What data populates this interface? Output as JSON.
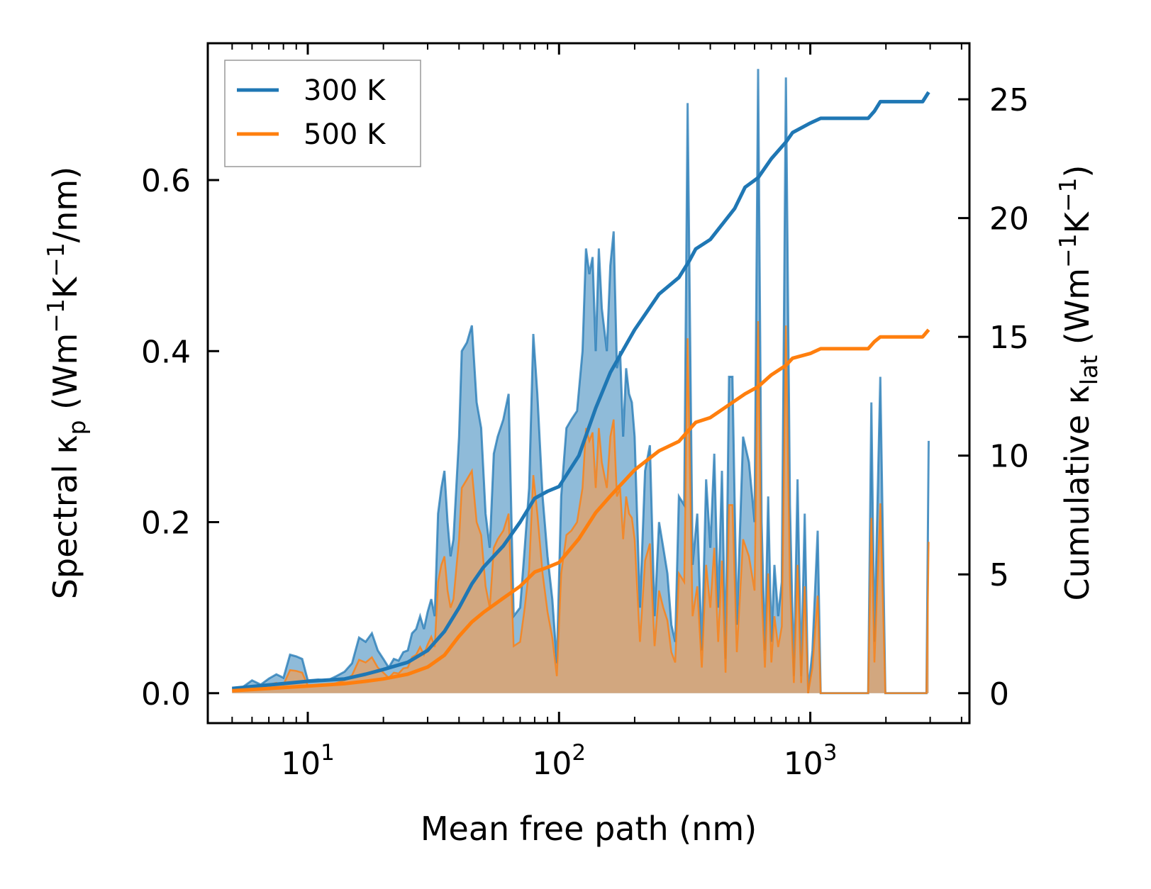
{
  "chart_data": {
    "type": "area",
    "xscale": "log",
    "xlim": [
      4.0,
      4300
    ],
    "ylim_left": [
      -0.035,
      0.76
    ],
    "ylim_right": [
      -1.26,
      27.36
    ],
    "xlabel": "Mean free path (nm)",
    "ylabel_left": {
      "prefix": "Spectral κ",
      "sub": "p",
      "units": " (Wm",
      "sup1": "−1",
      "mid": "K",
      "sup2": "−1",
      "suffix": "/nm)"
    },
    "ylabel_right": {
      "prefix": "Cumulative κ",
      "sub": "lat",
      "units": " (Wm",
      "sup1": "−1",
      "mid": "K",
      "sup2": "−1",
      "suffix": ")"
    },
    "x_ticks": [
      {
        "base": "10",
        "exp": "1",
        "value": 10
      },
      {
        "base": "10",
        "exp": "2",
        "value": 100
      },
      {
        "base": "10",
        "exp": "3",
        "value": 1000
      }
    ],
    "y_ticks_left": [
      {
        "label": "0.0",
        "value": 0.0
      },
      {
        "label": "0.2",
        "value": 0.2
      },
      {
        "label": "0.4",
        "value": 0.4
      },
      {
        "label": "0.6",
        "value": 0.6
      }
    ],
    "y_ticks_right": [
      {
        "label": "0",
        "value": 0
      },
      {
        "label": "5",
        "value": 5
      },
      {
        "label": "10",
        "value": 10
      },
      {
        "label": "15",
        "value": 15
      },
      {
        "label": "20",
        "value": 20
      },
      {
        "label": "25",
        "value": 25
      }
    ],
    "legend": {
      "position": "upper-left",
      "entries": [
        "300 K",
        "500 K"
      ]
    },
    "colors": {
      "s300": "#1f77b4",
      "s500": "#ff7f0e",
      "fill300": "#1f77b4",
      "fill500": "#e8a060"
    },
    "spectral_300K": [
      [
        5.0,
        0.005
      ],
      [
        5.5,
        0.007
      ],
      [
        6.0,
        0.015
      ],
      [
        6.5,
        0.01
      ],
      [
        7.0,
        0.017
      ],
      [
        7.5,
        0.022
      ],
      [
        8.0,
        0.018
      ],
      [
        8.5,
        0.045
      ],
      [
        9.0,
        0.043
      ],
      [
        9.5,
        0.04
      ],
      [
        10.0,
        0.015
      ],
      [
        11.0,
        0.016
      ],
      [
        12.0,
        0.015
      ],
      [
        13.0,
        0.02
      ],
      [
        14.0,
        0.025
      ],
      [
        15.0,
        0.035
      ],
      [
        16.0,
        0.065
      ],
      [
        17.0,
        0.06
      ],
      [
        18.0,
        0.07
      ],
      [
        19.0,
        0.05
      ],
      [
        20.0,
        0.04
      ],
      [
        21.0,
        0.03
      ],
      [
        22.0,
        0.04
      ],
      [
        23.0,
        0.038
      ],
      [
        24.0,
        0.048
      ],
      [
        25.0,
        0.05
      ],
      [
        26.0,
        0.07
      ],
      [
        27.0,
        0.075
      ],
      [
        28.0,
        0.09
      ],
      [
        29.0,
        0.075
      ],
      [
        30.0,
        0.095
      ],
      [
        31.0,
        0.11
      ],
      [
        32.0,
        0.09
      ],
      [
        33.0,
        0.21
      ],
      [
        34.0,
        0.24
      ],
      [
        35.0,
        0.26
      ],
      [
        36.0,
        0.2
      ],
      [
        37.0,
        0.16
      ],
      [
        38.0,
        0.18
      ],
      [
        40.0,
        0.3
      ],
      [
        41.0,
        0.4
      ],
      [
        43.0,
        0.41
      ],
      [
        45.0,
        0.43
      ],
      [
        47.0,
        0.34
      ],
      [
        49.0,
        0.31
      ],
      [
        51.0,
        0.21
      ],
      [
        53.0,
        0.17
      ],
      [
        55.0,
        0.28
      ],
      [
        57.0,
        0.3
      ],
      [
        60.0,
        0.32
      ],
      [
        63.0,
        0.35
      ],
      [
        66.0,
        0.09
      ],
      [
        70.0,
        0.1
      ],
      [
        73.0,
        0.17
      ],
      [
        76.0,
        0.24
      ],
      [
        79.0,
        0.42
      ],
      [
        82.0,
        0.35
      ],
      [
        86.0,
        0.23
      ],
      [
        90.0,
        0.16
      ],
      [
        94.0,
        0.11
      ],
      [
        98.0,
        0.035
      ],
      [
        102.0,
        0.23
      ],
      [
        107.0,
        0.31
      ],
      [
        112.0,
        0.32
      ],
      [
        118.0,
        0.33
      ],
      [
        124.0,
        0.4
      ],
      [
        128.0,
        0.52
      ],
      [
        132.0,
        0.49
      ],
      [
        136.0,
        0.51
      ],
      [
        140.0,
        0.4
      ],
      [
        144.0,
        0.52
      ],
      [
        148.0,
        0.45
      ],
      [
        155.0,
        0.4
      ],
      [
        160.0,
        0.5
      ],
      [
        165.0,
        0.54
      ],
      [
        170.0,
        0.38
      ],
      [
        175.0,
        0.4
      ],
      [
        180.0,
        0.3
      ],
      [
        185.0,
        0.38
      ],
      [
        190.0,
        0.35
      ],
      [
        195.0,
        0.34
      ],
      [
        200.0,
        0.3
      ],
      [
        210.0,
        0.1
      ],
      [
        220.0,
        0.26
      ],
      [
        230.0,
        0.29
      ],
      [
        240.0,
        0.09
      ],
      [
        250.0,
        0.2
      ],
      [
        260.0,
        0.17
      ],
      [
        270.0,
        0.14
      ],
      [
        280.0,
        0.08
      ],
      [
        290.0,
        0.06
      ],
      [
        300.0,
        0.23
      ],
      [
        315.0,
        0.22
      ],
      [
        325.0,
        0.69
      ],
      [
        340.0,
        0.15
      ],
      [
        355.0,
        0.21
      ],
      [
        370.0,
        0.05
      ],
      [
        385.0,
        0.25
      ],
      [
        400.0,
        0.17
      ],
      [
        415.0,
        0.28
      ],
      [
        430.0,
        0.1
      ],
      [
        445.0,
        0.26
      ],
      [
        460.0,
        0.04
      ],
      [
        475.0,
        0.37
      ],
      [
        490.0,
        0.37
      ],
      [
        510.0,
        0.08
      ],
      [
        540.0,
        0.3
      ],
      [
        570.0,
        0.27
      ],
      [
        600.0,
        0.2
      ],
      [
        620.0,
        0.73
      ],
      [
        640.0,
        0.2
      ],
      [
        660.0,
        0.05
      ],
      [
        680.0,
        0.23
      ],
      [
        700.0,
        0.06
      ],
      [
        720.0,
        0.15
      ],
      [
        745.0,
        0.09
      ],
      [
        770.0,
        0.13
      ],
      [
        800.0,
        0.72
      ],
      [
        830.0,
        0.22
      ],
      [
        860.0,
        0.02
      ],
      [
        890.0,
        0.25
      ],
      [
        920.0,
        0.02
      ],
      [
        950.0,
        0.21
      ],
      [
        980.0,
        0.0
      ],
      [
        1020.0,
        0.05
      ],
      [
        1070.0,
        0.19
      ],
      [
        1100.0,
        0.0
      ],
      [
        1700.0,
        0.0
      ],
      [
        1750.0,
        0.34
      ],
      [
        1800.0,
        0.06
      ],
      [
        1900.0,
        0.37
      ],
      [
        1990.0,
        0.0
      ],
      [
        2900.0,
        0.0
      ],
      [
        2960.0,
        0.295
      ]
    ],
    "spectral_500K": [
      [
        5.0,
        0.003
      ],
      [
        5.5,
        0.004
      ],
      [
        6.0,
        0.008
      ],
      [
        6.5,
        0.006
      ],
      [
        7.0,
        0.01
      ],
      [
        7.5,
        0.012
      ],
      [
        8.0,
        0.01
      ],
      [
        8.5,
        0.027
      ],
      [
        9.0,
        0.026
      ],
      [
        9.5,
        0.024
      ],
      [
        10.0,
        0.009
      ],
      [
        11.0,
        0.01
      ],
      [
        12.0,
        0.009
      ],
      [
        13.0,
        0.012
      ],
      [
        14.0,
        0.015
      ],
      [
        15.0,
        0.021
      ],
      [
        16.0,
        0.039
      ],
      [
        17.0,
        0.036
      ],
      [
        18.0,
        0.042
      ],
      [
        19.0,
        0.03
      ],
      [
        20.0,
        0.024
      ],
      [
        21.0,
        0.018
      ],
      [
        22.0,
        0.024
      ],
      [
        23.0,
        0.023
      ],
      [
        24.0,
        0.029
      ],
      [
        25.0,
        0.03
      ],
      [
        26.0,
        0.042
      ],
      [
        27.0,
        0.045
      ],
      [
        28.0,
        0.054
      ],
      [
        29.0,
        0.045
      ],
      [
        30.0,
        0.057
      ],
      [
        31.0,
        0.066
      ],
      [
        32.0,
        0.054
      ],
      [
        33.0,
        0.13
      ],
      [
        34.0,
        0.15
      ],
      [
        35.0,
        0.16
      ],
      [
        36.0,
        0.12
      ],
      [
        37.0,
        0.1
      ],
      [
        38.0,
        0.11
      ],
      [
        40.0,
        0.18
      ],
      [
        41.0,
        0.24
      ],
      [
        43.0,
        0.25
      ],
      [
        45.0,
        0.26
      ],
      [
        47.0,
        0.2
      ],
      [
        49.0,
        0.185
      ],
      [
        51.0,
        0.125
      ],
      [
        53.0,
        0.1
      ],
      [
        55.0,
        0.17
      ],
      [
        57.0,
        0.18
      ],
      [
        60.0,
        0.19
      ],
      [
        63.0,
        0.21
      ],
      [
        66.0,
        0.055
      ],
      [
        70.0,
        0.06
      ],
      [
        73.0,
        0.1
      ],
      [
        76.0,
        0.145
      ],
      [
        79.0,
        0.255
      ],
      [
        82.0,
        0.21
      ],
      [
        86.0,
        0.14
      ],
      [
        90.0,
        0.095
      ],
      [
        94.0,
        0.065
      ],
      [
        98.0,
        0.02
      ],
      [
        102.0,
        0.14
      ],
      [
        107.0,
        0.185
      ],
      [
        112.0,
        0.19
      ],
      [
        118.0,
        0.2
      ],
      [
        124.0,
        0.24
      ],
      [
        128.0,
        0.31
      ],
      [
        132.0,
        0.295
      ],
      [
        136.0,
        0.305
      ],
      [
        140.0,
        0.24
      ],
      [
        144.0,
        0.31
      ],
      [
        148.0,
        0.27
      ],
      [
        155.0,
        0.24
      ],
      [
        160.0,
        0.3
      ],
      [
        165.0,
        0.32
      ],
      [
        170.0,
        0.23
      ],
      [
        175.0,
        0.24
      ],
      [
        180.0,
        0.18
      ],
      [
        185.0,
        0.23
      ],
      [
        190.0,
        0.21
      ],
      [
        195.0,
        0.205
      ],
      [
        200.0,
        0.18
      ],
      [
        210.0,
        0.06
      ],
      [
        220.0,
        0.155
      ],
      [
        230.0,
        0.175
      ],
      [
        240.0,
        0.055
      ],
      [
        250.0,
        0.12
      ],
      [
        260.0,
        0.1
      ],
      [
        270.0,
        0.085
      ],
      [
        280.0,
        0.048
      ],
      [
        290.0,
        0.036
      ],
      [
        300.0,
        0.14
      ],
      [
        315.0,
        0.13
      ],
      [
        325.0,
        0.415
      ],
      [
        340.0,
        0.09
      ],
      [
        355.0,
        0.125
      ],
      [
        370.0,
        0.03
      ],
      [
        385.0,
        0.15
      ],
      [
        400.0,
        0.1
      ],
      [
        415.0,
        0.17
      ],
      [
        430.0,
        0.06
      ],
      [
        445.0,
        0.155
      ],
      [
        460.0,
        0.024
      ],
      [
        475.0,
        0.22
      ],
      [
        490.0,
        0.22
      ],
      [
        510.0,
        0.048
      ],
      [
        540.0,
        0.18
      ],
      [
        570.0,
        0.16
      ],
      [
        600.0,
        0.12
      ],
      [
        620.0,
        0.435
      ],
      [
        640.0,
        0.12
      ],
      [
        660.0,
        0.03
      ],
      [
        680.0,
        0.14
      ],
      [
        700.0,
        0.036
      ],
      [
        720.0,
        0.09
      ],
      [
        745.0,
        0.054
      ],
      [
        770.0,
        0.078
      ],
      [
        800.0,
        0.43
      ],
      [
        830.0,
        0.13
      ],
      [
        860.0,
        0.012
      ],
      [
        890.0,
        0.15
      ],
      [
        920.0,
        0.012
      ],
      [
        950.0,
        0.125
      ],
      [
        980.0,
        0.0
      ],
      [
        1020.0,
        0.03
      ],
      [
        1070.0,
        0.114
      ],
      [
        1100.0,
        0.0
      ],
      [
        1700.0,
        0.0
      ],
      [
        1750.0,
        0.205
      ],
      [
        1800.0,
        0.036
      ],
      [
        1900.0,
        0.222
      ],
      [
        1990.0,
        0.0
      ],
      [
        2900.0,
        0.0
      ],
      [
        2960.0,
        0.177
      ]
    ],
    "cumulative_300K": [
      [
        5.0,
        0.2
      ],
      [
        10.0,
        0.5
      ],
      [
        14.0,
        0.6
      ],
      [
        17.0,
        0.8
      ],
      [
        20.0,
        1.0
      ],
      [
        25.0,
        1.3
      ],
      [
        30.0,
        1.8
      ],
      [
        35.0,
        2.6
      ],
      [
        40.0,
        3.6
      ],
      [
        45.0,
        4.6
      ],
      [
        50.0,
        5.3
      ],
      [
        60.0,
        6.2
      ],
      [
        70.0,
        7.2
      ],
      [
        80.0,
        8.2
      ],
      [
        90.0,
        8.5
      ],
      [
        100.0,
        8.7
      ],
      [
        120.0,
        10.0
      ],
      [
        140.0,
        12.0
      ],
      [
        160.0,
        13.5
      ],
      [
        200.0,
        15.3
      ],
      [
        250.0,
        16.8
      ],
      [
        300.0,
        17.5
      ],
      [
        330.0,
        18.2
      ],
      [
        350.0,
        18.7
      ],
      [
        400.0,
        19.1
      ],
      [
        500.0,
        20.4
      ],
      [
        550.0,
        21.3
      ],
      [
        620.0,
        21.7
      ],
      [
        700.0,
        22.5
      ],
      [
        800.0,
        23.2
      ],
      [
        850.0,
        23.6
      ],
      [
        1000.0,
        24.0
      ],
      [
        1100.0,
        24.2
      ],
      [
        1700.0,
        24.2
      ],
      [
        1800.0,
        24.5
      ],
      [
        1900.0,
        24.9
      ],
      [
        2800.0,
        24.9
      ],
      [
        2960.0,
        25.3
      ]
    ],
    "cumulative_500K": [
      [
        5.0,
        0.1
      ],
      [
        10.0,
        0.3
      ],
      [
        14.0,
        0.4
      ],
      [
        17.0,
        0.5
      ],
      [
        20.0,
        0.6
      ],
      [
        25.0,
        0.8
      ],
      [
        30.0,
        1.1
      ],
      [
        35.0,
        1.6
      ],
      [
        40.0,
        2.4
      ],
      [
        45.0,
        3.0
      ],
      [
        50.0,
        3.4
      ],
      [
        60.0,
        4.0
      ],
      [
        70.0,
        4.5
      ],
      [
        80.0,
        5.1
      ],
      [
        90.0,
        5.3
      ],
      [
        100.0,
        5.5
      ],
      [
        120.0,
        6.5
      ],
      [
        140.0,
        7.6
      ],
      [
        160.0,
        8.3
      ],
      [
        200.0,
        9.4
      ],
      [
        250.0,
        10.2
      ],
      [
        300.0,
        10.6
      ],
      [
        330.0,
        11.1
      ],
      [
        350.0,
        11.4
      ],
      [
        400.0,
        11.6
      ],
      [
        500.0,
        12.3
      ],
      [
        550.0,
        12.6
      ],
      [
        620.0,
        12.9
      ],
      [
        700.0,
        13.4
      ],
      [
        800.0,
        13.8
      ],
      [
        850.0,
        14.1
      ],
      [
        1000.0,
        14.3
      ],
      [
        1100.0,
        14.5
      ],
      [
        1700.0,
        14.5
      ],
      [
        1800.0,
        14.8
      ],
      [
        1900.0,
        15.0
      ],
      [
        2800.0,
        15.0
      ],
      [
        2960.0,
        15.3
      ]
    ]
  }
}
